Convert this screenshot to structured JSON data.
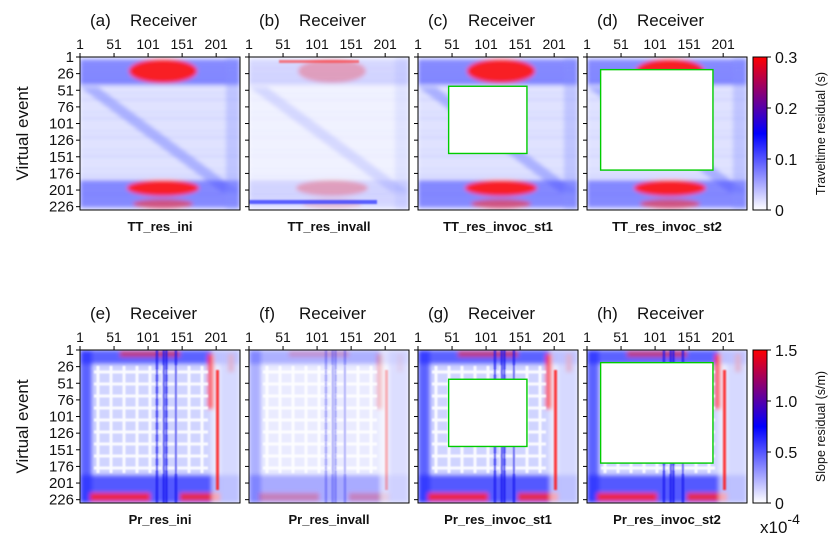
{
  "chart_data": {
    "type": "heatmap",
    "receiver_ticks": [
      "1",
      "51",
      "101",
      "151",
      "201"
    ],
    "event_ticks": [
      "1",
      "26",
      "51",
      "76",
      "101",
      "126",
      "151",
      "176",
      "201",
      "226"
    ],
    "receiver_range": [
      1,
      236
    ],
    "event_range": [
      1,
      231
    ],
    "panel_xlabel": "Receiver",
    "row_ylabel": "Virtual event",
    "rows": [
      {
        "colorbar": {
          "label": "Traveltime residual (s)",
          "ticks": [
            "0",
            "0.1",
            "0.2",
            "0.3"
          ],
          "range": [
            0,
            0.3
          ],
          "multiplier": "",
          "colors": [
            "#ffffff",
            "#0000ff",
            "#ff0000"
          ]
        },
        "panels": [
          {
            "letter": "(a)",
            "title": "TT_res_ini",
            "box": null
          },
          {
            "letter": "(b)",
            "title": "TT_res_invall",
            "box": null
          },
          {
            "letter": "(c)",
            "title": "TT_res_invoc_st1",
            "box": {
              "receivers": [
                46,
                161
              ],
              "events": [
                45,
                146
              ],
              "color": "#00cc00"
            }
          },
          {
            "letter": "(d)",
            "title": "TT_res_invoc_st2",
            "box": {
              "receivers": [
                21,
                186
              ],
              "events": [
                20,
                171
              ],
              "color": "#00cc00"
            }
          }
        ]
      },
      {
        "colorbar": {
          "label": "Slope residual (s/m)",
          "ticks": [
            "0",
            "0.5",
            "1.0",
            "1.5"
          ],
          "range": [
            0,
            1.5
          ],
          "multiplier": "x10",
          "multiplier_exp": "-4",
          "colors": [
            "#ffffff",
            "#0000ff",
            "#ff0000"
          ]
        },
        "panels": [
          {
            "letter": "(e)",
            "title": "Pr_res_ini",
            "box": null
          },
          {
            "letter": "(f)",
            "title": "Pr_res_invall",
            "box": null
          },
          {
            "letter": "(g)",
            "title": "Pr_res_invoc_st1",
            "box": {
              "receivers": [
                46,
                161
              ],
              "events": [
                45,
                146
              ],
              "color": "#00cc00"
            }
          },
          {
            "letter": "(h)",
            "title": "Pr_res_invoc_st2",
            "box": {
              "receivers": [
                21,
                186
              ],
              "events": [
                20,
                171
              ],
              "color": "#00cc00"
            }
          }
        ]
      }
    ]
  }
}
